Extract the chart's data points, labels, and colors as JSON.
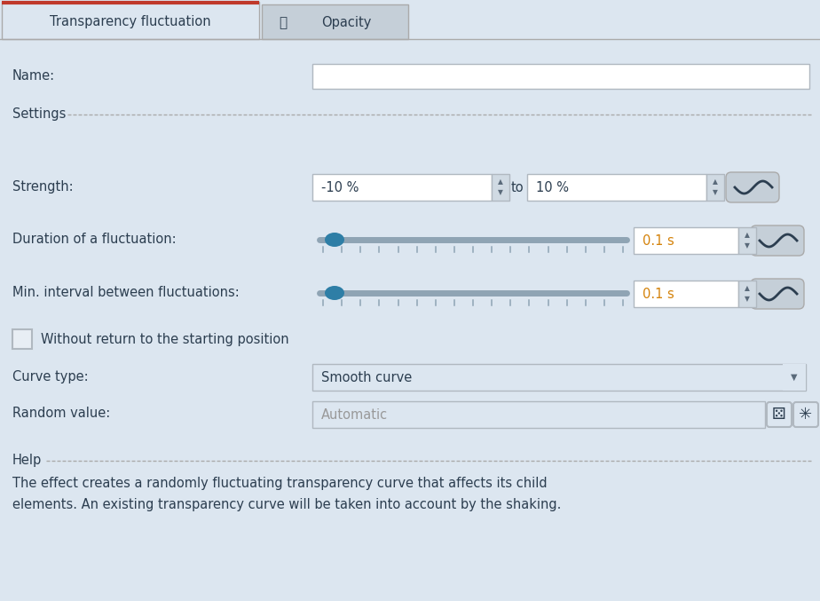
{
  "bg_color": "#dce6f0",
  "tab_active": "Transparency fluctuation",
  "tab_inactive": "Opacity",
  "tab_active_bg": "#dce6f0",
  "tab_inactive_bg": "#c5cfd8",
  "tab_border_color": "#aaaaaa",
  "tab_active_top_color": "#c0392b",
  "name_label": "Name:",
  "name_box_color": "#ffffff",
  "settings_label": "Settings",
  "dotted_line_color": "#aaaaaa",
  "strength_label": "Strength:",
  "strength_val1": "-10 %",
  "strength_to": "to",
  "strength_val2": "10 %",
  "duration_label": "Duration of a fluctuation:",
  "duration_val": "0.1 s",
  "interval_label": "Min. interval between fluctuations:",
  "interval_val": "0.1 s",
  "checkbox_label": "Without return to the starting position",
  "curve_type_label": "Curve type:",
  "curve_type_val": "Smooth curve",
  "random_label": "Random value:",
  "random_val": "Automatic",
  "help_label": "Help",
  "help_line1": "The effect creates a randomly fluctuating transparency curve that affects its child",
  "help_line2": "elements. An existing transparency curve will be taken into account by the shaking.",
  "slider_track_color": "#8fa4b4",
  "slider_thumb_color": "#2e7ea6",
  "spinbox_bg": "#ffffff",
  "spinbox_border": "#b0b8c0",
  "wave_btn_bg": "#c5cfd8",
  "wave_btn_border": "#aaaaaa",
  "label_color": "#2c3e50",
  "help_text_color": "#2c3e50",
  "section_label_color": "#2c3e50",
  "input_text_color": "#2c3e50",
  "placeholder_color": "#999999",
  "arrow_color": "#5a6a7a",
  "spinner_bg": "#d0dae3"
}
